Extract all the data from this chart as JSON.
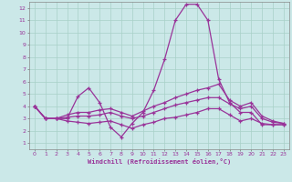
{
  "xlabel": "Windchill (Refroidissement éolien,°C)",
  "bg_color": "#cbe8e8",
  "grid_color": "#a8d0c8",
  "line_color": "#993399",
  "xlim": [
    -0.5,
    23.5
  ],
  "ylim": [
    0.5,
    12.5
  ],
  "xticks": [
    0,
    1,
    2,
    3,
    4,
    5,
    6,
    7,
    8,
    9,
    10,
    11,
    12,
    13,
    14,
    15,
    16,
    17,
    18,
    19,
    20,
    21,
    22,
    23
  ],
  "yticks": [
    1,
    2,
    3,
    4,
    5,
    6,
    7,
    8,
    9,
    10,
    11,
    12
  ],
  "lines": [
    {
      "x": [
        0,
        1,
        2,
        3,
        4,
        5,
        6,
        7,
        8,
        9,
        10,
        11,
        12,
        13,
        14,
        15,
        16,
        17,
        18,
        19,
        20,
        21,
        22,
        23
      ],
      "y": [
        4.0,
        3.0,
        3.0,
        3.0,
        4.8,
        5.5,
        4.3,
        2.3,
        1.5,
        2.6,
        3.5,
        5.3,
        7.8,
        11.0,
        12.3,
        12.3,
        11.0,
        6.2,
        4.3,
        3.5,
        3.5,
        2.5,
        2.5,
        2.5
      ]
    },
    {
      "x": [
        0,
        1,
        2,
        3,
        4,
        5,
        6,
        7,
        8,
        9,
        10,
        11,
        12,
        13,
        14,
        15,
        16,
        17,
        18,
        19,
        20,
        21,
        22,
        23
      ],
      "y": [
        4.0,
        3.0,
        3.0,
        3.3,
        3.5,
        3.5,
        3.7,
        3.8,
        3.5,
        3.2,
        3.6,
        4.0,
        4.3,
        4.7,
        5.0,
        5.3,
        5.5,
        5.8,
        4.5,
        4.0,
        4.3,
        3.2,
        2.8,
        2.6
      ]
    },
    {
      "x": [
        0,
        1,
        2,
        3,
        4,
        5,
        6,
        7,
        8,
        9,
        10,
        11,
        12,
        13,
        14,
        15,
        16,
        17,
        18,
        19,
        20,
        21,
        22,
        23
      ],
      "y": [
        4.0,
        3.0,
        3.0,
        3.1,
        3.2,
        3.2,
        3.3,
        3.5,
        3.2,
        3.0,
        3.2,
        3.5,
        3.8,
        4.1,
        4.3,
        4.5,
        4.7,
        4.7,
        4.2,
        3.8,
        4.0,
        3.0,
        2.7,
        2.6
      ]
    },
    {
      "x": [
        0,
        1,
        2,
        3,
        4,
        5,
        6,
        7,
        8,
        9,
        10,
        11,
        12,
        13,
        14,
        15,
        16,
        17,
        18,
        19,
        20,
        21,
        22,
        23
      ],
      "y": [
        4.0,
        3.0,
        3.0,
        2.8,
        2.7,
        2.6,
        2.7,
        2.8,
        2.5,
        2.2,
        2.5,
        2.7,
        3.0,
        3.1,
        3.3,
        3.5,
        3.8,
        3.8,
        3.3,
        2.8,
        3.0,
        2.6,
        2.5,
        2.5
      ]
    }
  ]
}
